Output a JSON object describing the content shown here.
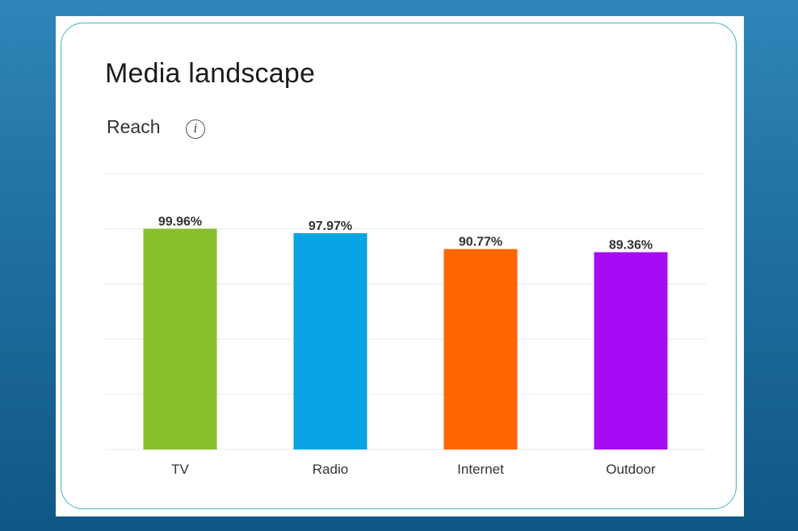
{
  "card": {
    "title": "Media landscape",
    "subtitle": "Reach",
    "info_icon": "i"
  },
  "colors": {
    "background": "#1d6a9c",
    "card_border": "#43b6c4",
    "gridline": "#e6e9ec"
  },
  "chart_data": {
    "type": "bar",
    "title": "Media landscape",
    "subtitle": "Reach",
    "categories": [
      "TV",
      "Radio",
      "Internet",
      "Outdoor"
    ],
    "values": [
      99.96,
      97.97,
      90.77,
      89.36
    ],
    "value_labels": [
      "99.96%",
      "97.97%",
      "90.77%",
      "89.36%"
    ],
    "colors": [
      "#88bf2a",
      "#07a3e4",
      "#ff6600",
      "#a50cf5"
    ],
    "ylim": [
      0,
      125
    ],
    "grid": true,
    "gridline_values": [
      0,
      25,
      50,
      75,
      100,
      125
    ],
    "xlabel": "",
    "ylabel": ""
  }
}
